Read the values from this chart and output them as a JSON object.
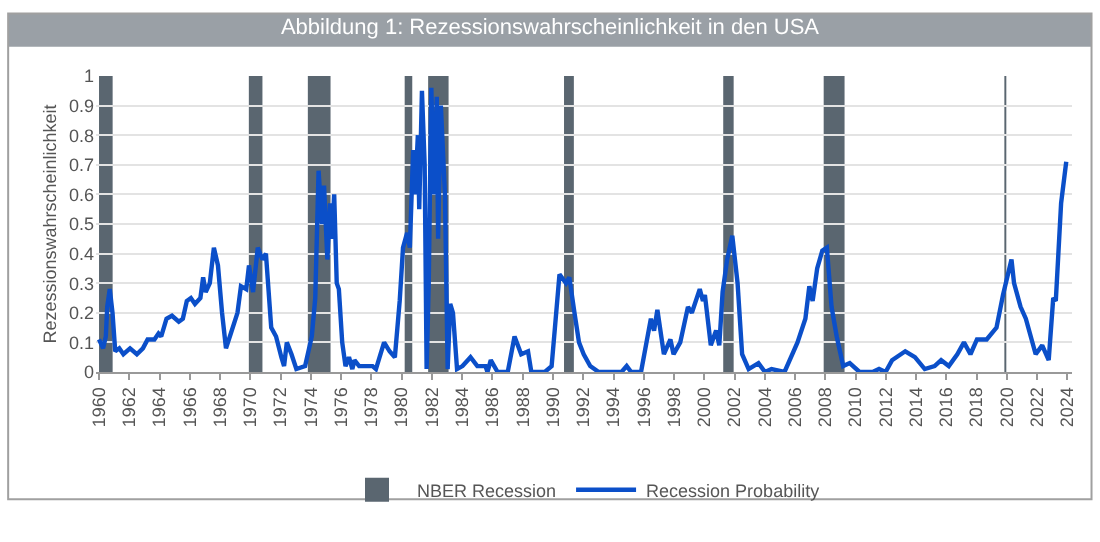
{
  "chart_data": {
    "type": "line",
    "title": "Abbildung 1: Rezessionswahrscheinlichkeit in den USA",
    "ylabel": "Rezessionswahrscheinlichkeit",
    "x": [
      1960.0,
      1960.27,
      1960.45,
      1960.54,
      1960.71,
      1960.89,
      1961.07,
      1961.34,
      1961.61,
      1962.05,
      1962.5,
      1962.9,
      1963.21,
      1963.66,
      1963.93,
      1964.11,
      1964.46,
      1964.82,
      1965.27,
      1965.54,
      1965.8,
      1966.07,
      1966.34,
      1966.7,
      1966.88,
      1967.05,
      1967.32,
      1967.59,
      1967.86,
      1968.13,
      1968.39,
      1968.71,
      1969.15,
      1969.38,
      1969.73,
      1969.91,
      1970.18,
      1970.49,
      1970.8,
      1971.03,
      1971.38,
      1971.7,
      1972.05,
      1972.23,
      1972.41,
      1972.72,
      1973.04,
      1973.62,
      1974.06,
      1974.29,
      1974.51,
      1974.73,
      1974.87,
      1975.09,
      1975.27,
      1975.4,
      1975.54,
      1975.71,
      1975.85,
      1976.07,
      1976.29,
      1976.52,
      1976.74,
      1976.88,
      1977.19,
      1978.08,
      1978.3,
      1978.84,
      1979.2,
      1979.55,
      1979.87,
      1980.09,
      1980.36,
      1980.54,
      1980.76,
      1980.89,
      1981.07,
      1981.16,
      1981.34,
      1981.52,
      1981.65,
      1981.79,
      1981.96,
      1982.14,
      1982.32,
      1982.41,
      1982.59,
      1982.86,
      1983.04,
      1983.21,
      1983.39,
      1983.66,
      1984.02,
      1984.55,
      1985.0,
      1985.54,
      1985.67,
      1985.89,
      1986.34,
      1987.01,
      1987.46,
      1987.9,
      1988.35,
      1988.57,
      1989.46,
      1989.91,
      1990.13,
      1990.43,
      1990.86,
      1991.08,
      1991.42,
      1991.72,
      1992.03,
      1992.46,
      1993.02,
      1994.53,
      1994.87,
      1995.17,
      1995.82,
      1996.47,
      1996.68,
      1996.9,
      1997.33,
      1997.76,
      1997.97,
      1998.41,
      1998.92,
      1999.18,
      1999.7,
      1999.91,
      2000.04,
      2000.43,
      2000.78,
      2000.99,
      2001.21,
      2001.51,
      2001.85,
      2002.2,
      2002.5,
      2002.93,
      2003.58,
      2004.01,
      2004.44,
      2005.3,
      2006.16,
      2006.68,
      2006.94,
      2007.16,
      2007.46,
      2007.8,
      2008.1,
      2008.41,
      2008.75,
      2009.18,
      2009.61,
      2010.26,
      2011.12,
      2011.55,
      2011.98,
      2012.41,
      2013.28,
      2013.92,
      2014.57,
      2015.22,
      2015.65,
      2016.16,
      2016.72,
      2017.16,
      2017.59,
      2018.02,
      2018.66,
      2019.31,
      2019.74,
      2020.3,
      2020.47,
      2020.9,
      2021.25,
      2021.9,
      2022.33,
      2022.76,
      2023.06,
      2023.23,
      2023.58,
      2023.92
    ],
    "series": [
      {
        "name": "Recession Probability",
        "color": "#0b4fc9",
        "values": [
          0.11,
          0.08,
          0.12,
          0.22,
          0.28,
          0.2,
          0.07,
          0.08,
          0.06,
          0.08,
          0.06,
          0.08,
          0.11,
          0.11,
          0.13,
          0.12,
          0.18,
          0.19,
          0.17,
          0.18,
          0.24,
          0.25,
          0.23,
          0.25,
          0.32,
          0.27,
          0.3,
          0.42,
          0.36,
          0.2,
          0.08,
          0.13,
          0.2,
          0.29,
          0.28,
          0.36,
          0.27,
          0.42,
          0.38,
          0.4,
          0.15,
          0.12,
          0.05,
          0.02,
          0.1,
          0.06,
          0.01,
          0.02,
          0.12,
          0.25,
          0.68,
          0.5,
          0.63,
          0.38,
          0.57,
          0.45,
          0.6,
          0.3,
          0.28,
          0.1,
          0.02,
          0.05,
          0.01,
          0.04,
          0.02,
          0.02,
          0.01,
          0.1,
          0.07,
          0.05,
          0.24,
          0.42,
          0.47,
          0.42,
          0.75,
          0.6,
          0.8,
          0.55,
          0.95,
          0.7,
          0.01,
          0.3,
          0.96,
          0.6,
          0.93,
          0.45,
          0.9,
          0.6,
          0.01,
          0.23,
          0.2,
          0.01,
          0.02,
          0.05,
          0.02,
          0.02,
          0,
          0.04,
          0,
          0,
          0.12,
          0.06,
          0.07,
          0,
          0,
          0.02,
          0.15,
          0.33,
          0.3,
          0.32,
          0.2,
          0.1,
          0.06,
          0.02,
          0,
          0,
          0.02,
          0,
          0,
          0.18,
          0.14,
          0.21,
          0.06,
          0.11,
          0.06,
          0.1,
          0.22,
          0.2,
          0.28,
          0.24,
          0.26,
          0.09,
          0.14,
          0.09,
          0.27,
          0.38,
          0.46,
          0.3,
          0.06,
          0.01,
          0.03,
          0,
          0.01,
          0,
          0.1,
          0.18,
          0.29,
          0.24,
          0.35,
          0.41,
          0.42,
          0.22,
          0.12,
          0.02,
          0.03,
          0,
          0,
          0.01,
          0,
          0.04,
          0.07,
          0.05,
          0.01,
          0.02,
          0.04,
          0.02,
          0.06,
          0.1,
          0.06,
          0.11,
          0.11,
          0.15,
          0.26,
          0.38,
          0.3,
          0.22,
          0.18,
          0.06,
          0.09,
          0.04,
          0.25,
          0.24,
          0.57,
          0.71
        ]
      }
    ],
    "bands": [
      {
        "axis": "x",
        "from": 1960.0,
        "to": 1960.9,
        "label": "NBER Recession",
        "color": "#5a6670"
      },
      {
        "axis": "x",
        "from": 1969.9,
        "to": 1970.8,
        "color": "#5a6670"
      },
      {
        "axis": "x",
        "from": 1973.8,
        "to": 1975.3,
        "color": "#5a6670"
      },
      {
        "axis": "x",
        "from": 1980.2,
        "to": 1980.7,
        "color": "#5a6670"
      },
      {
        "axis": "x",
        "from": 1981.75,
        "to": 1983.1,
        "color": "#5a6670"
      },
      {
        "axis": "x",
        "from": 1990.73,
        "to": 1991.38,
        "color": "#5a6670"
      },
      {
        "axis": "x",
        "from": 2001.25,
        "to": 2001.94,
        "color": "#5a6670"
      },
      {
        "axis": "x",
        "from": 2007.89,
        "to": 2009.27,
        "color": "#5a6670"
      },
      {
        "axis": "x",
        "from": 2019.83,
        "to": 2019.96,
        "color": "#5a6670"
      }
    ],
    "xlim": [
      1959.8,
      2024.3
    ],
    "xticks": [
      1960,
      1962,
      1964,
      1966,
      1968,
      1970,
      1972,
      1974,
      1976,
      1978,
      1980,
      1982,
      1984,
      1986,
      1988,
      1990,
      1992,
      1994,
      1996,
      1998,
      2000,
      2002,
      2004,
      2006,
      2008,
      2010,
      2012,
      2014,
      2016,
      2018,
      2020,
      2022,
      2024
    ],
    "ylim": [
      0,
      1
    ],
    "yticks": [
      0,
      0.1,
      0.2,
      0.3,
      0.4,
      0.5,
      0.6,
      0.7,
      0.8,
      0.9,
      1
    ],
    "grid": "y",
    "legend": "bottom",
    "marker": "none",
    "line_style": "solid"
  }
}
